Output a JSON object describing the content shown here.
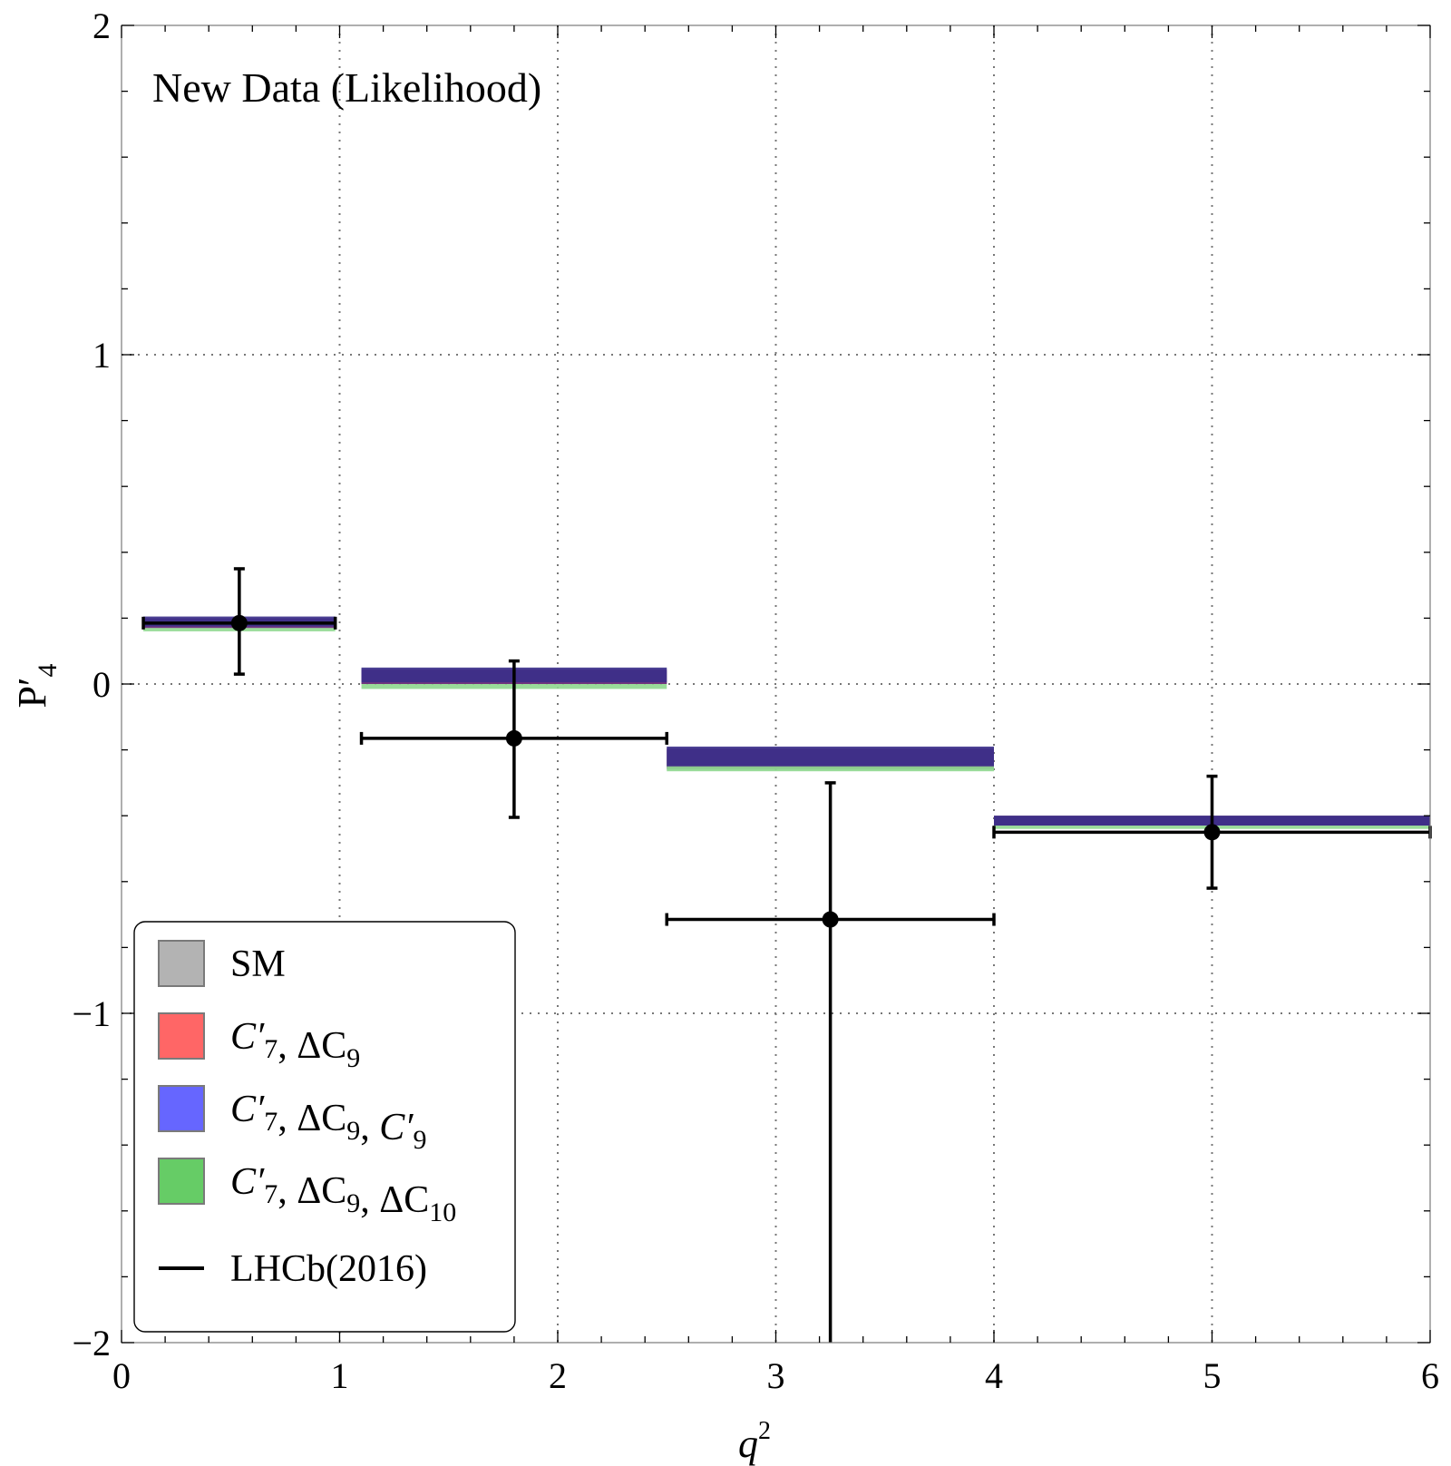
{
  "chart_data": {
    "type": "bar",
    "title": "",
    "annotation": "New Data (Likelihood)",
    "xlabel": "q",
    "xlabel_sup": "2",
    "ylabel": "P",
    "ylabel_prime": "′",
    "ylabel_sub": "4",
    "xlim": [
      0,
      6
    ],
    "ylim": [
      -2,
      2
    ],
    "xticks": [
      0,
      1,
      2,
      3,
      4,
      5,
      6
    ],
    "xtick_labels": [
      "0",
      "1",
      "2",
      "3",
      "4",
      "5",
      "6"
    ],
    "yticks": [
      -2,
      -1,
      0,
      1,
      2
    ],
    "ytick_labels": [
      "−2",
      "−1",
      "0",
      "1",
      "2"
    ],
    "grid": true,
    "legend_position": "bottom-left",
    "legend": [
      {
        "key": "sm",
        "kind": "swatch",
        "color": "#b3b3b3",
        "label": [
          {
            "t": "SM"
          }
        ]
      },
      {
        "key": "red",
        "kind": "swatch",
        "color": "#ff6666",
        "label": [
          {
            "t": "C",
            "it": true
          },
          {
            "t": "′",
            "it": true
          },
          {
            "t": "7",
            "sub": true
          },
          {
            "t": ", ΔC"
          },
          {
            "t": "9",
            "sub": true
          }
        ]
      },
      {
        "key": "blue",
        "kind": "swatch",
        "color": "#6666ff",
        "label": [
          {
            "t": "C",
            "it": true
          },
          {
            "t": "′",
            "it": true
          },
          {
            "t": "7",
            "sub": true
          },
          {
            "t": ", ΔC"
          },
          {
            "t": "9",
            "sub": true
          },
          {
            "t": ", "
          },
          {
            "t": "C",
            "it": true
          },
          {
            "t": "′",
            "it": true
          },
          {
            "t": "9",
            "sub": true
          }
        ]
      },
      {
        "key": "green",
        "kind": "swatch",
        "color": "#66cc66",
        "label": [
          {
            "t": "C",
            "it": true
          },
          {
            "t": "′",
            "it": true
          },
          {
            "t": "7",
            "sub": true
          },
          {
            "t": ", ΔC"
          },
          {
            "t": "9",
            "sub": true
          },
          {
            "t": ", ΔC"
          },
          {
            "t": "10",
            "sub": true
          }
        ]
      },
      {
        "key": "lhcb",
        "kind": "line",
        "color": "#000000",
        "label": [
          {
            "t": "LHCb(2016)"
          }
        ]
      }
    ],
    "series": [
      {
        "name": "SM",
        "color": "#7f8a88",
        "bins": [
          {
            "x0": 0.1,
            "x1": 0.98,
            "lo": 0.17,
            "hi": 0.19
          },
          {
            "x0": 1.1,
            "x1": 2.5,
            "lo": 0.0,
            "hi": 0.04
          },
          {
            "x0": 2.5,
            "x1": 4.0,
            "lo": -0.26,
            "hi": -0.2
          },
          {
            "x0": 4.0,
            "x1": 6.0,
            "lo": -0.43,
            "hi": -0.4
          }
        ]
      },
      {
        "name": "C7', ΔC9",
        "color": "#6f2a7c",
        "bins": [
          {
            "x0": 0.1,
            "x1": 0.98,
            "lo": 0.17,
            "hi": 0.2
          },
          {
            "x0": 1.1,
            "x1": 2.5,
            "lo": 0.0,
            "hi": 0.045
          },
          {
            "x0": 2.5,
            "x1": 4.0,
            "lo": -0.255,
            "hi": -0.195
          },
          {
            "x0": 4.0,
            "x1": 6.0,
            "lo": -0.43,
            "hi": -0.4
          }
        ]
      },
      {
        "name": "C7', ΔC9, C9'",
        "color": "#3a2f8a",
        "bins": [
          {
            "x0": 0.1,
            "x1": 0.98,
            "lo": 0.175,
            "hi": 0.205
          },
          {
            "x0": 1.1,
            "x1": 2.5,
            "lo": 0.005,
            "hi": 0.05
          },
          {
            "x0": 2.5,
            "x1": 4.0,
            "lo": -0.25,
            "hi": -0.19
          },
          {
            "x0": 4.0,
            "x1": 6.0,
            "lo": -0.43,
            "hi": -0.4
          }
        ]
      },
      {
        "name": "C7', ΔC9, ΔC10",
        "color": "#8fd88f",
        "bins": [
          {
            "x0": 0.1,
            "x1": 0.98,
            "lo": 0.16,
            "hi": 0.17
          },
          {
            "x0": 1.1,
            "x1": 2.5,
            "lo": -0.015,
            "hi": 0.0
          },
          {
            "x0": 2.5,
            "x1": 4.0,
            "lo": -0.265,
            "hi": -0.25
          },
          {
            "x0": 4.0,
            "x1": 6.0,
            "lo": -0.44,
            "hi": -0.43
          }
        ]
      }
    ],
    "data_points": {
      "name": "LHCb(2016)",
      "points": [
        {
          "x": 0.54,
          "y": 0.185,
          "x_lo": 0.1,
          "x_hi": 0.98,
          "y_lo": 0.03,
          "y_hi": 0.35
        },
        {
          "x": 1.8,
          "y": -0.165,
          "x_lo": 1.1,
          "x_hi": 2.5,
          "y_lo": -0.405,
          "y_hi": 0.07
        },
        {
          "x": 3.25,
          "y": -0.715,
          "x_lo": 2.5,
          "x_hi": 4.0,
          "y_lo": -2.0,
          "y_hi": -0.3
        },
        {
          "x": 5.0,
          "y": -0.45,
          "x_lo": 4.0,
          "x_hi": 6.0,
          "y_lo": -0.62,
          "y_hi": -0.28
        }
      ]
    }
  }
}
